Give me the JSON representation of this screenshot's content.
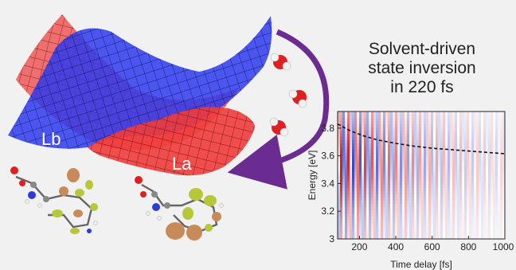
{
  "headline": {
    "line1": "Solvent-driven",
    "line2": "state inversion",
    "line3": "in 220 fs"
  },
  "surfaces": {
    "lb_label": "Lb",
    "la_label": "La",
    "lb_color": "#2e3bf0",
    "la_color": "#ef3b3b"
  },
  "arrow_color": "#6a2c91",
  "molecules": [
    "water-molecule",
    "water-molecule",
    "water-molecule"
  ],
  "chart_data": {
    "type": "heatmap",
    "xlabel": "Time delay [fs]",
    "ylabel": "Energy [eV]",
    "xlim": [
      80,
      1000
    ],
    "ylim": [
      3.0,
      3.92
    ],
    "xticks": [
      200,
      400,
      600,
      800,
      1000
    ],
    "yticks": [
      3,
      3.2,
      3.4,
      3.6,
      3.8
    ],
    "ytick_labels": [
      "3",
      "3.2",
      "3.4",
      "3.6",
      "3.8"
    ],
    "colormap": [
      "#1f3fcc",
      "#ffffff",
      "#d51f1f"
    ],
    "oscillation_period_fs": 44,
    "dashed_curve": {
      "x": [
        80,
        150,
        220,
        300,
        400,
        500,
        600,
        700,
        800,
        900,
        1000
      ],
      "y": [
        3.83,
        3.78,
        3.745,
        3.715,
        3.69,
        3.67,
        3.655,
        3.645,
        3.635,
        3.625,
        3.615
      ]
    }
  }
}
